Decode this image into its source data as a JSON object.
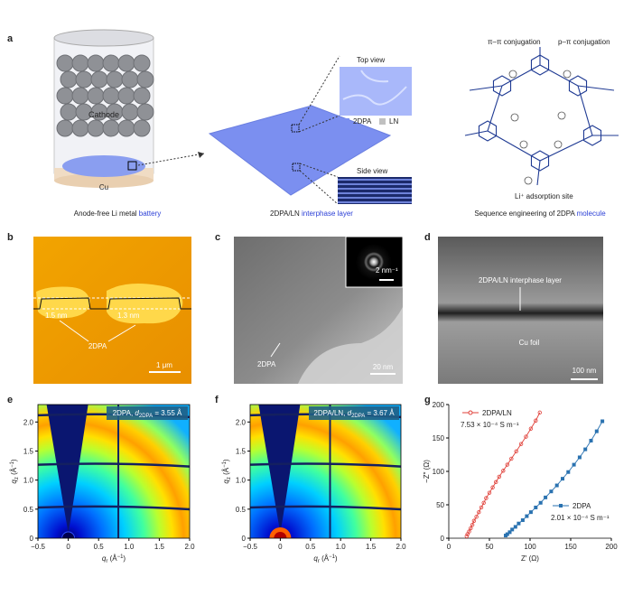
{
  "figure": {
    "a": {
      "label": "a",
      "cathode": "Cathode",
      "cu": "Cu",
      "caption1": [
        "Anode-free Li metal ",
        "battery"
      ],
      "top_view": "Top view",
      "side_view": "Side view",
      "legend": [
        "2DPA",
        "LN"
      ],
      "caption2": [
        "2DPA/LN ",
        "interphase layer"
      ],
      "pi_pi": "π–π conjugation",
      "p_pi": "p–π conjugation",
      "li_site": "Li⁺ adsorption site",
      "caption3": [
        "Sequence engineering of 2DPA ",
        "molecule"
      ]
    },
    "b": {
      "label": "b",
      "thickness1": "1.5 nm",
      "thickness2": "1.3 nm",
      "material": "2DPA",
      "scale": "1 μm"
    },
    "c": {
      "label": "c",
      "inset_scale": "2 nm⁻¹",
      "material": "2DPA",
      "scale": "20 nm"
    },
    "d": {
      "label": "d",
      "layer": "2DPA/LN interphase layer",
      "substrate": "Cu foil",
      "scale": "100 nm"
    },
    "e": {
      "label": "e",
      "annotation": [
        "2DPA, ",
        "d",
        "2DPA",
        " = 3.55 Å"
      ],
      "xlabel": [
        "q",
        "r",
        " (Å",
        "−1",
        ")"
      ],
      "ylabel": [
        "q",
        "z",
        " (Å",
        "−1",
        ")"
      ],
      "xlim": [
        -0.5,
        2.0
      ],
      "ylim": [
        0,
        2.3
      ],
      "xticks": [
        {
          "value": -0.5,
          "label": "−0.5"
        },
        0,
        0.5,
        {
          "value": 1,
          "label": "1.0"
        },
        1.5,
        {
          "value": 2,
          "label": "2.0"
        }
      ],
      "yticks": [
        0,
        0.5,
        {
          "value": 1,
          "label": "1.0"
        },
        1.5,
        {
          "value": 2,
          "label": "2.0"
        }
      ]
    },
    "f": {
      "label": "f",
      "annotation": [
        "2DPA/LN, ",
        "d",
        "2DPA",
        " = 3.67 Å"
      ],
      "xlabel": [
        "q",
        "r",
        " (Å",
        "−1",
        ")"
      ],
      "ylabel": [
        "q",
        "z",
        " (Å",
        "−1",
        ")"
      ],
      "xlim": [
        -0.5,
        2.0
      ],
      "ylim": [
        0,
        2.3
      ],
      "xticks": [
        {
          "value": -0.5,
          "label": "−0.5"
        },
        0,
        0.5,
        {
          "value": 1,
          "label": "1.0"
        },
        1.5,
        {
          "value": 2,
          "label": "2.0"
        }
      ],
      "yticks": [
        0,
        0.5,
        {
          "value": 1,
          "label": "1.0"
        },
        1.5,
        {
          "value": 2,
          "label": "2.0"
        }
      ]
    },
    "g": {
      "label": "g"
    }
  },
  "chart_data": {
    "type": "line",
    "xlabel": "Z′ (Ω)",
    "ylabel": "−Z″ (Ω)",
    "xlim": [
      0,
      200
    ],
    "ylim": [
      0,
      200
    ],
    "xticks": [
      0,
      50,
      100,
      150,
      200
    ],
    "yticks": [
      0,
      50,
      100,
      150,
      200
    ],
    "series": [
      {
        "name": "2DPA/LN",
        "color": "#e0413a",
        "annotation": "7.53 × 10⁻⁴ S m⁻¹",
        "x": [
          22,
          23,
          25,
          27,
          29,
          31,
          34,
          37,
          40,
          43,
          46,
          50,
          54,
          58,
          62,
          67,
          72,
          77,
          83,
          89,
          95,
          101,
          107,
          112
        ],
        "values": [
          3,
          6,
          10,
          15,
          20,
          26,
          32,
          39,
          46,
          53,
          60,
          68,
          76,
          84,
          92,
          101,
          110,
          119,
          130,
          141,
          152,
          164,
          176,
          188
        ]
      },
      {
        "name": "2DPA",
        "color": "#2a72b0",
        "annotation": "2.01 × 10⁻⁴ S m⁻¹",
        "x": [
          70,
          72,
          75,
          78,
          82,
          86,
          91,
          96,
          101,
          107,
          113,
          119,
          126,
          133,
          140,
          147,
          154,
          161,
          168,
          175,
          182,
          189
        ],
        "values": [
          4,
          6,
          9,
          13,
          17,
          22,
          27,
          33,
          39,
          46,
          53,
          61,
          70,
          79,
          89,
          99,
          110,
          121,
          133,
          146,
          160,
          175
        ]
      }
    ]
  }
}
